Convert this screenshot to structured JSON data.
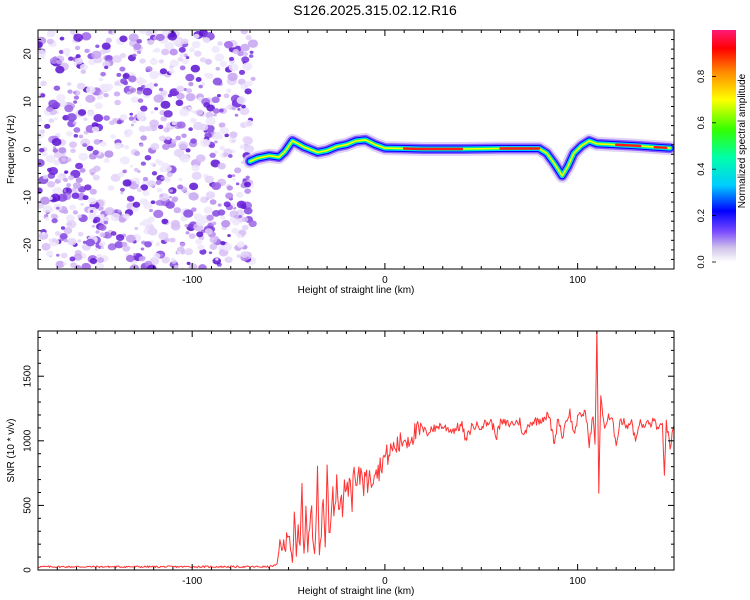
{
  "title": "S126.2025.315.02.12.R16",
  "chart_data": [
    {
      "type": "heatmap",
      "name": "spectrogram",
      "xlabel": "Height of straight line (km)",
      "ylabel": "Frequency (Hz)",
      "xlim": [
        -180,
        150
      ],
      "ylim": [
        -25,
        25
      ],
      "xticks": [
        -100,
        0,
        100
      ],
      "yticks": [
        -20,
        -10,
        0,
        10,
        20
      ],
      "noise_region": {
        "x": [
          -180,
          -68
        ],
        "y": [
          -25,
          25
        ]
      },
      "ridge": {
        "x": [
          -70,
          -66,
          -60,
          -55,
          -52,
          -48,
          -45,
          -42,
          -40,
          -35,
          -30,
          -25,
          -20,
          -15,
          -10,
          -5,
          0,
          10,
          20,
          40,
          60,
          80,
          84,
          88,
          92,
          95,
          98,
          102,
          106,
          110,
          120,
          130,
          140,
          148
        ],
        "y": [
          -2.5,
          -1.8,
          -1.3,
          -1.6,
          -0.5,
          1.8,
          1.2,
          0.5,
          0.2,
          -0.6,
          -0.2,
          0.6,
          1.0,
          1.8,
          2.0,
          1.0,
          0.3,
          0.2,
          0.1,
          0.1,
          0.2,
          0.2,
          -0.8,
          -3.0,
          -5.5,
          -3.5,
          -0.8,
          0.8,
          1.8,
          1.2,
          1.0,
          0.8,
          0.5,
          0.3
        ]
      },
      "colorbar": {
        "label": "Normalized spectral amplitude",
        "ticks": [
          0.0,
          0.2,
          0.4,
          0.6,
          0.8
        ],
        "tick_labels": [
          "0.0",
          "0.2",
          "0.4",
          "0.6",
          "0.8"
        ],
        "range": [
          0,
          1
        ],
        "colors": [
          "#ffffff",
          "#b39ddb",
          "#6200ea",
          "#0000ff",
          "#00e5ff",
          "#00ff00",
          "#ffff00",
          "#ff8000",
          "#ff0000",
          "#ff1a66"
        ]
      }
    },
    {
      "type": "line",
      "name": "snr",
      "xlabel": "Height of straight line (km)",
      "ylabel": "SNR (10 * v/v)",
      "xlim": [
        -180,
        150
      ],
      "ylim": [
        0,
        1850
      ],
      "xticks": [
        -100,
        0,
        100
      ],
      "yticks": [
        0,
        500,
        1000,
        1500
      ],
      "series": [
        {
          "name": "SNR",
          "color": "#ff3333",
          "x": [
            -180,
            -160,
            -140,
            -120,
            -100,
            -80,
            -60,
            -56,
            -54,
            -52,
            -50,
            -48,
            -47,
            -46,
            -45,
            -44,
            -43,
            -42,
            -41,
            -40,
            -39,
            -38,
            -37,
            -36,
            -35,
            -34,
            -33,
            -32,
            -31,
            -30,
            -29,
            -28,
            -27,
            -26,
            -25,
            -24,
            -23,
            -22,
            -21,
            -20,
            -19,
            -18,
            -17,
            -16,
            -15,
            -14,
            -13,
            -12,
            -11,
            -10,
            -9,
            -8,
            -7,
            -6,
            -5,
            -4,
            -3,
            -2,
            -1,
            0,
            2,
            4,
            6,
            8,
            10,
            12,
            14,
            16,
            18,
            20,
            22,
            24,
            26,
            28,
            30,
            35,
            40,
            42,
            45,
            50,
            55,
            58,
            60,
            65,
            70,
            72,
            75,
            80,
            85,
            88,
            90,
            92,
            94,
            96,
            98,
            100,
            102,
            104,
            106,
            108,
            109,
            110,
            111,
            112,
            114,
            116,
            118,
            120,
            122,
            124,
            126,
            128,
            130,
            132,
            134,
            136,
            138,
            140,
            142,
            144,
            145,
            146,
            148,
            150
          ],
          "values": [
            25,
            25,
            25,
            25,
            25,
            25,
            25,
            40,
            250,
            120,
            350,
            80,
            420,
            60,
            300,
            150,
            680,
            40,
            520,
            200,
            330,
            450,
            110,
            250,
            880,
            150,
            300,
            520,
            200,
            770,
            380,
            350,
            590,
            420,
            760,
            520,
            600,
            450,
            740,
            560,
            650,
            700,
            540,
            760,
            640,
            700,
            720,
            800,
            660,
            760,
            640,
            820,
            700,
            740,
            820,
            760,
            780,
            820,
            860,
            870,
            900,
            940,
            960,
            980,
            1020,
            1010,
            1050,
            1060,
            1070,
            1080,
            1060,
            1100,
            1090,
            1120,
            1110,
            1080,
            1120,
            1000,
            1110,
            1120,
            1150,
            1040,
            1140,
            1130,
            1150,
            1030,
            1140,
            1160,
            1200,
            980,
            1190,
            1020,
            1160,
            1220,
            1050,
            1170,
            1200,
            1230,
            980,
            1200,
            950,
            1850,
            600,
            1350,
            1100,
            1180,
            1150,
            980,
            1160,
            1140,
            1120,
            1160,
            990,
            1150,
            1100,
            1140,
            1130,
            1160,
            1080,
            1120,
            760,
            1130,
            950,
            1120
          ]
        }
      ]
    }
  ]
}
